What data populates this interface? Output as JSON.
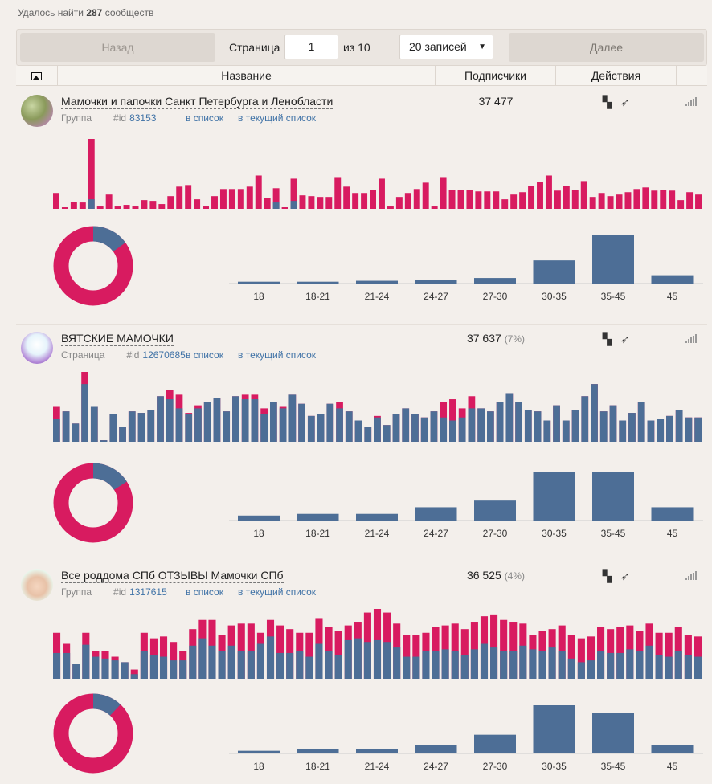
{
  "header": {
    "found_prefix": "Удалось найти",
    "found_count": "287",
    "found_suffix": "сообществ"
  },
  "pager": {
    "prev_label": "Назад",
    "page_label": "Страница",
    "page_value": "1",
    "of_label": "из 10",
    "per_page": "20 записей",
    "next_label": "Далее"
  },
  "table": {
    "col_name": "Название",
    "col_subs": "Подписчики",
    "col_actions": "Действия"
  },
  "colors": {
    "red": "#d81b60",
    "blue": "#4d6e96"
  },
  "rows": [
    {
      "name": "Мамочки и папочки Санкт Петербурга и Ленобласти",
      "type": "Группа",
      "id_label": "#id",
      "id": "83153",
      "link_list": "в список",
      "link_current": "в текущий список",
      "subs": "37 477",
      "pct": "",
      "chart_data": {
        "type": "bar",
        "series": [
          {
            "name": "blue",
            "values": [
              0,
              0,
              0,
              0,
              12,
              0,
              0,
              0,
              0,
              0,
              0,
              0,
              0,
              0,
              0,
              0,
              0,
              0,
              0,
              0,
              0,
              0,
              0,
              0,
              0,
              8,
              0,
              10,
              0,
              0,
              0,
              0,
              0,
              0,
              0,
              0,
              0,
              0,
              0,
              0,
              0,
              0,
              0,
              0,
              0,
              0,
              0,
              0,
              0,
              0,
              0,
              0,
              0,
              0,
              0,
              0,
              0,
              0,
              0,
              0,
              0,
              0,
              0,
              0,
              0,
              0,
              0,
              0,
              0,
              0,
              0,
              0,
              0,
              0
            ]
          },
          {
            "name": "red",
            "values": [
              20,
              2,
              9,
              8,
              88,
              3,
              18,
              3,
              5,
              3,
              11,
              10,
              6,
              16,
              28,
              30,
              12,
              3,
              16,
              25,
              25,
              25,
              28,
              42,
              14,
              26,
              2,
              38,
              17,
              16,
              15,
              15,
              40,
              28,
              20,
              20,
              24,
              38,
              3,
              15,
              20,
              25,
              33,
              3,
              40,
              24,
              24,
              24,
              22,
              22,
              22,
              12,
              18,
              21,
              29,
              34,
              42,
              23,
              29,
              24,
              35,
              15,
              20,
              16,
              18,
              21,
              25,
              27,
              23,
              24,
              23,
              11,
              21,
              18
            ]
          }
        ],
        "donut": [
          85,
          15
        ],
        "age": {
          "categories": [
            "18",
            "18-21",
            "21-24",
            "24-27",
            "27-30",
            "30-35",
            "35-45",
            "45"
          ],
          "values": [
            2,
            2,
            3,
            4,
            6,
            25,
            52,
            9
          ]
        }
      }
    },
    {
      "name": "ВЯТСКИЕ МАМОЧКИ",
      "type": "Страница",
      "id_label": "#id",
      "id": "12670685",
      "link_list": "в список",
      "link_current": "в текущий список",
      "subs": "37 637",
      "pct": "(7%)",
      "chart_data": {
        "type": "bar",
        "series": [
          {
            "name": "blue",
            "values": [
              15,
              38,
              34,
              38,
              38,
              38,
              26,
              34,
              30,
              34,
              32,
              34,
              28,
              22,
              18,
              22,
              28,
              34,
              38,
              34,
              28,
              28,
              18,
              26,
              22,
              38,
              38,
              34,
              28,
              28,
              22,
              34,
              14,
              16,
              16,
              26,
              22,
              22,
              28,
              28,
              20,
              16,
              14,
              16,
              22,
              26,
              36,
              40,
              58,
              30,
              34,
              36,
              34,
              34,
              32,
              34,
              36,
              42,
              38,
              30,
              34,
              30,
              34,
              30,
              32,
              30,
              28,
              20,
              26
            ]
          },
          {
            "name": "red",
            "values": [
              23,
              20,
              12,
              46,
              23,
              1,
              18,
              10,
              20,
              19,
              21,
              30,
              34,
              31,
              19,
              24,
              26,
              29,
              20,
              30,
              31,
              31,
              22,
              26,
              23,
              31,
              25,
              17,
              18,
              25,
              26,
              20,
              14,
              10,
              17,
              11,
              18,
              22,
              18,
              16,
              20,
              26,
              28,
              22,
              30,
              22,
              20,
              26,
              32,
              26,
              21,
              20,
              14,
              24,
              14,
              21,
              30,
              38,
              20,
              24,
              14,
              19,
              26,
              14,
              15,
              17,
              21,
              16,
              16
            ]
          }
        ],
        "donut": [
          84,
          16
        ],
        "age": {
          "categories": [
            "18",
            "18-21",
            "21-24",
            "24-27",
            "27-30",
            "30-35",
            "35-45",
            "45"
          ],
          "values": [
            3,
            4,
            4,
            8,
            12,
            29,
            29,
            8
          ]
        }
      }
    },
    {
      "name": "Все роддома СПб ОТЗЫВЫ Мамочки СПб",
      "type": "Группа",
      "id_label": "#id",
      "id": "1317615",
      "link_list": "в список",
      "link_current": "в текущий список",
      "subs": "36 525",
      "pct": "(4%)",
      "chart_data": {
        "type": "bar",
        "series": [
          {
            "name": "blue",
            "values": [
              28,
              28,
              16,
              37,
              24,
              22,
              20,
              18,
              5,
              30,
              26,
              24,
              20,
              20,
              36,
              44,
              36,
              30,
              36,
              30,
              30,
              38,
              46,
              28,
              28,
              30,
              24,
              38,
              30,
              26,
              42,
              44,
              40,
              42,
              40,
              34,
              24,
              24,
              30,
              30,
              32,
              30,
              26,
              32,
              38,
              34,
              30,
              30,
              36,
              32,
              30,
              34,
              30,
              22,
              18,
              20,
              30,
              28,
              28,
              32,
              30,
              36,
              26,
              24,
              30,
              26,
              24
            ]
          },
          {
            "name": "red",
            "values": [
              50,
              38,
              16,
              50,
              30,
              30,
              24,
              18,
              10,
              50,
              44,
              46,
              40,
              30,
              54,
              64,
              64,
              48,
              58,
              60,
              60,
              50,
              64,
              58,
              54,
              50,
              50,
              66,
              56,
              52,
              58,
              62,
              72,
              76,
              72,
              60,
              48,
              48,
              50,
              56,
              58,
              60,
              54,
              62,
              68,
              70,
              64,
              62,
              60,
              48,
              52,
              54,
              58,
              48,
              44,
              46,
              56,
              54,
              56,
              58,
              52,
              60,
              50,
              50,
              56,
              48,
              46
            ]
          }
        ],
        "donut": [
          88,
          12
        ],
        "age": {
          "categories": [
            "18",
            "18-21",
            "21-24",
            "24-27",
            "27-30",
            "30-35",
            "35-45",
            "45"
          ],
          "values": [
            2,
            3,
            3,
            6,
            14,
            36,
            30,
            6
          ]
        }
      }
    }
  ]
}
